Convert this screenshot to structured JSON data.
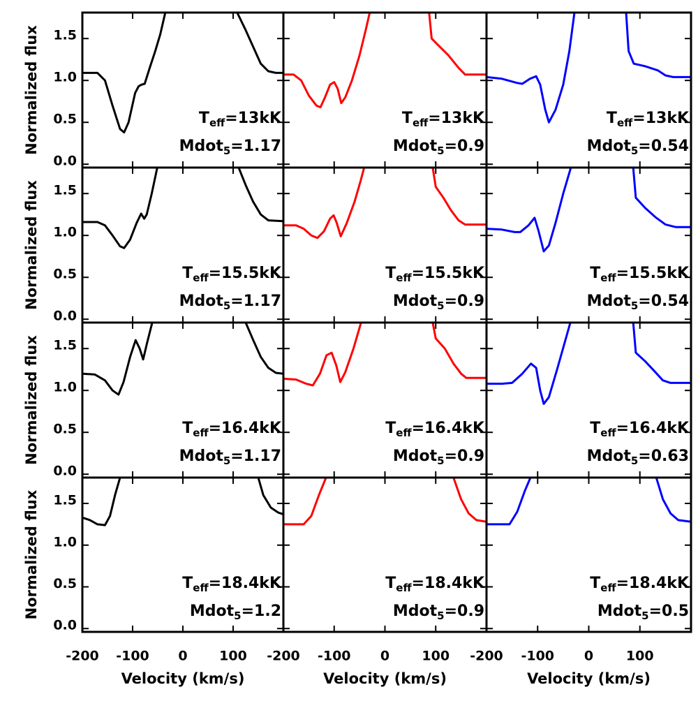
{
  "chart_data": [
    {
      "type": "line",
      "color": "#000000",
      "xlim": [
        -200,
        200
      ],
      "ylim": [
        -0.04,
        1.81
      ],
      "xticks": [
        -200,
        -100,
        0,
        100
      ],
      "yticks": [
        {
          "value": 0,
          "label": "0.0"
        },
        0.5,
        {
          "value": 1,
          "label": "1.0"
        },
        1.5
      ],
      "ytick_labels": true,
      "xtick_labels": false,
      "ylabel": "Normalized flux",
      "x": [
        -200,
        -170,
        -155,
        -140,
        -125,
        -117,
        -108,
        -95,
        -88,
        -82,
        -76,
        -66,
        -55,
        -45,
        -35,
        0,
        108,
        125,
        140,
        155,
        170,
        185,
        200
      ],
      "values": [
        1.09,
        1.09,
        1.0,
        0.7,
        0.42,
        0.38,
        0.5,
        0.85,
        0.93,
        0.95,
        0.96,
        1.15,
        1.35,
        1.55,
        1.81,
        null,
        1.81,
        1.6,
        1.4,
        1.2,
        1.11,
        1.09,
        1.09
      ],
      "annotations": [
        {
          "text": "T",
          "sub": "eff",
          "rest": "=13kK"
        },
        {
          "text": "Mdot",
          "sub": "5",
          "rest": "=1.17"
        }
      ]
    },
    {
      "type": "line",
      "color": "#ff0000",
      "xlim": [
        -200,
        200
      ],
      "ylim": [
        -0.04,
        1.81
      ],
      "xticks": [
        -200,
        -100,
        0,
        100
      ],
      "yticks": [
        0,
        0.5,
        1,
        1.5
      ],
      "ytick_labels": false,
      "xtick_labels": false,
      "x": [
        -200,
        -180,
        -165,
        -150,
        -135,
        -127,
        -118,
        -108,
        -100,
        -93,
        -86,
        -78,
        -65,
        -50,
        -38,
        -30,
        0,
        87,
        92,
        105,
        125,
        145,
        158,
        200
      ],
      "values": [
        1.07,
        1.07,
        1.0,
        0.82,
        0.7,
        0.68,
        0.8,
        0.95,
        0.98,
        0.9,
        0.73,
        0.8,
        1.0,
        1.3,
        1.6,
        1.81,
        null,
        1.81,
        1.5,
        1.42,
        1.3,
        1.15,
        1.07,
        1.07
      ],
      "annotations": [
        {
          "text": "T",
          "sub": "eff",
          "rest": "=13kK"
        },
        {
          "text": "Mdot",
          "sub": "5",
          "rest": "=0.9"
        }
      ]
    },
    {
      "type": "line",
      "color": "#0000ff",
      "xlim": [
        -200,
        200
      ],
      "ylim": [
        -0.04,
        1.81
      ],
      "xticks": [
        -200,
        -100,
        0,
        100
      ],
      "yticks": [
        0,
        0.5,
        1,
        1.5
      ],
      "ytick_labels": false,
      "xtick_labels": false,
      "x": [
        -200,
        -170,
        -140,
        -130,
        -115,
        -103,
        -95,
        -85,
        -78,
        -65,
        -50,
        -38,
        -28,
        0,
        73,
        78,
        88,
        110,
        135,
        150,
        165,
        200
      ],
      "values": [
        1.04,
        1.02,
        0.97,
        0.96,
        1.02,
        1.05,
        0.95,
        0.65,
        0.5,
        0.65,
        0.95,
        1.35,
        1.81,
        null,
        1.81,
        1.35,
        1.2,
        1.17,
        1.12,
        1.06,
        1.04,
        1.04
      ],
      "annotations": [
        {
          "text": "T",
          "sub": "eff",
          "rest": "=13kK"
        },
        {
          "text": "Mdot",
          "sub": "5",
          "rest": "=0.54"
        }
      ]
    },
    {
      "type": "line",
      "color": "#000000",
      "xlim": [
        -200,
        200
      ],
      "ylim": [
        -0.04,
        1.81
      ],
      "xticks": [
        -200,
        -100,
        0,
        100
      ],
      "yticks": [
        {
          "value": 0,
          "label": "0.0"
        },
        0.5,
        {
          "value": 1,
          "label": "1.0"
        },
        1.5
      ],
      "ytick_labels": true,
      "xtick_labels": false,
      "ylabel": "Normalized flux",
      "x": [
        -200,
        -170,
        -155,
        -140,
        -125,
        -117,
        -105,
        -92,
        -83,
        -77,
        -72,
        -62,
        -51,
        0,
        111,
        125,
        140,
        155,
        170,
        200
      ],
      "values": [
        1.16,
        1.16,
        1.12,
        1.0,
        0.87,
        0.85,
        0.95,
        1.15,
        1.26,
        1.2,
        1.25,
        1.5,
        1.81,
        null,
        1.81,
        1.6,
        1.4,
        1.25,
        1.18,
        1.17
      ],
      "annotations": [
        {
          "text": "T",
          "sub": "eff",
          "rest": "=15.5kK"
        },
        {
          "text": "Mdot",
          "sub": "5",
          "rest": "=1.17"
        }
      ]
    },
    {
      "type": "line",
      "color": "#ff0000",
      "xlim": [
        -200,
        200
      ],
      "ylim": [
        -0.04,
        1.81
      ],
      "xticks": [
        -200,
        -100,
        0,
        100
      ],
      "yticks": [
        0,
        0.5,
        1,
        1.5
      ],
      "ytick_labels": false,
      "xtick_labels": false,
      "x": [
        -200,
        -175,
        -160,
        -145,
        -133,
        -120,
        -108,
        -101,
        -95,
        -87,
        -75,
        -60,
        -48,
        -41,
        0,
        94,
        100,
        115,
        130,
        145,
        158,
        200
      ],
      "values": [
        1.12,
        1.12,
        1.08,
        1.0,
        0.97,
        1.05,
        1.2,
        1.24,
        1.15,
        0.99,
        1.15,
        1.4,
        1.65,
        1.81,
        null,
        1.81,
        1.58,
        1.45,
        1.3,
        1.18,
        1.13,
        1.13
      ],
      "annotations": [
        {
          "text": "T",
          "sub": "eff",
          "rest": "=15.5kK"
        },
        {
          "text": "Mdot",
          "sub": "5",
          "rest": "=0.9"
        }
      ]
    },
    {
      "type": "line",
      "color": "#0000ff",
      "xlim": [
        -200,
        200
      ],
      "ylim": [
        -0.04,
        1.81
      ],
      "xticks": [
        -200,
        -100,
        0,
        100
      ],
      "yticks": [
        0,
        0.5,
        1,
        1.5
      ],
      "ytick_labels": false,
      "xtick_labels": false,
      "x": [
        -200,
        -170,
        -145,
        -134,
        -118,
        -106,
        -98,
        -88,
        -78,
        -65,
        -50,
        -35,
        0,
        87,
        92,
        110,
        130,
        150,
        170,
        200
      ],
      "values": [
        1.08,
        1.07,
        1.04,
        1.04,
        1.12,
        1.21,
        1.05,
        0.81,
        0.88,
        1.15,
        1.5,
        1.81,
        null,
        1.81,
        1.45,
        1.33,
        1.22,
        1.13,
        1.1,
        1.1
      ],
      "annotations": [
        {
          "text": "T",
          "sub": "eff",
          "rest": "=15.5kK"
        },
        {
          "text": "Mdot",
          "sub": "5",
          "rest": "=0.54"
        }
      ]
    },
    {
      "type": "line",
      "color": "#000000",
      "xlim": [
        -200,
        200
      ],
      "ylim": [
        -0.04,
        1.81
      ],
      "xticks": [
        -200,
        -100,
        0,
        100
      ],
      "yticks": [
        {
          "value": 0,
          "label": "0.0"
        },
        0.5,
        {
          "value": 1,
          "label": "1.0"
        },
        1.5
      ],
      "ytick_labels": true,
      "xtick_labels": false,
      "ylabel": "Normalized flux",
      "x": [
        -200,
        -175,
        -155,
        -140,
        -128,
        -118,
        -105,
        -94,
        -86,
        -79,
        -72,
        -61,
        0,
        125,
        140,
        155,
        170,
        185,
        200
      ],
      "values": [
        1.2,
        1.19,
        1.12,
        1.0,
        0.95,
        1.1,
        1.4,
        1.6,
        1.5,
        1.37,
        1.55,
        1.81,
        null,
        1.81,
        1.6,
        1.4,
        1.27,
        1.21,
        1.2
      ],
      "annotations": [
        {
          "text": "T",
          "sub": "eff",
          "rest": "=16.4kK"
        },
        {
          "text": "Mdot",
          "sub": "5",
          "rest": "=1.17"
        }
      ]
    },
    {
      "type": "line",
      "color": "#ff0000",
      "xlim": [
        -200,
        200
      ],
      "ylim": [
        -0.04,
        1.81
      ],
      "xticks": [
        -200,
        -100,
        0,
        100
      ],
      "yticks": [
        0,
        0.5,
        1,
        1.5
      ],
      "ytick_labels": false,
      "xtick_labels": false,
      "x": [
        -200,
        -175,
        -155,
        -142,
        -128,
        -115,
        -105,
        -96,
        -88,
        -78,
        -62,
        -47,
        0,
        94,
        100,
        118,
        135,
        150,
        160,
        200
      ],
      "values": [
        1.14,
        1.13,
        1.08,
        1.06,
        1.2,
        1.42,
        1.45,
        1.3,
        1.1,
        1.22,
        1.5,
        1.81,
        null,
        1.81,
        1.62,
        1.5,
        1.32,
        1.2,
        1.15,
        1.15
      ],
      "annotations": [
        {
          "text": "T",
          "sub": "eff",
          "rest": "=16.4kK"
        },
        {
          "text": "Mdot",
          "sub": "5",
          "rest": "=0.9"
        }
      ]
    },
    {
      "type": "line",
      "color": "#0000ff",
      "xlim": [
        -200,
        200
      ],
      "ylim": [
        -0.04,
        1.81
      ],
      "xticks": [
        -200,
        -100,
        0,
        100
      ],
      "yticks": [
        0,
        0.5,
        1,
        1.5
      ],
      "ytick_labels": false,
      "xtick_labels": false,
      "x": [
        -200,
        -170,
        -150,
        -130,
        -113,
        -103,
        -95,
        -88,
        -78,
        -62,
        -48,
        -36,
        0,
        87,
        92,
        110,
        130,
        145,
        160,
        200
      ],
      "values": [
        1.08,
        1.08,
        1.09,
        1.2,
        1.32,
        1.27,
        1.0,
        0.84,
        0.92,
        1.25,
        1.55,
        1.81,
        null,
        1.81,
        1.45,
        1.35,
        1.22,
        1.12,
        1.09,
        1.09
      ],
      "annotations": [
        {
          "text": "T",
          "sub": "eff",
          "rest": "=16.4kK"
        },
        {
          "text": "Mdot",
          "sub": "5",
          "rest": "=0.63"
        }
      ]
    },
    {
      "type": "line",
      "color": "#000000",
      "xlim": [
        -200,
        200
      ],
      "ylim": [
        -0.04,
        1.81
      ],
      "xticks": [
        -200,
        -100,
        0,
        100
      ],
      "yticks": [
        {
          "value": 0,
          "label": "0.0"
        },
        0.5,
        {
          "value": 1,
          "label": "1.0"
        },
        1.5
      ],
      "ytick_labels": true,
      "xtick_labels": true,
      "ylabel": "Normalized flux",
      "xlabel": "Velocity (km/s)",
      "x": [
        -200,
        -185,
        -170,
        -155,
        -145,
        -135,
        -125,
        0,
        150,
        160,
        175,
        190,
        200
      ],
      "values": [
        1.33,
        1.3,
        1.25,
        1.24,
        1.35,
        1.6,
        1.81,
        null,
        1.81,
        1.6,
        1.45,
        1.39,
        1.37
      ],
      "annotations": [
        {
          "text": "T",
          "sub": "eff",
          "rest": "=18.4kK"
        },
        {
          "text": "Mdot",
          "sub": "5",
          "rest": "=1.2"
        }
      ]
    },
    {
      "type": "line",
      "color": "#ff0000",
      "xlim": [
        -200,
        200
      ],
      "ylim": [
        -0.04,
        1.81
      ],
      "xticks": [
        -200,
        -100,
        0,
        100
      ],
      "yticks": [
        0,
        0.5,
        1,
        1.5
      ],
      "ytick_labels": false,
      "xtick_labels": true,
      "xlabel": "Velocity (km/s)",
      "x": [
        -200,
        -160,
        -145,
        -130,
        -116,
        0,
        135,
        150,
        165,
        180,
        200
      ],
      "values": [
        1.25,
        1.25,
        1.35,
        1.6,
        1.81,
        null,
        1.81,
        1.55,
        1.38,
        1.3,
        1.28
      ],
      "annotations": [
        {
          "text": "T",
          "sub": "eff",
          "rest": "=18.4kK"
        },
        {
          "text": "Mdot",
          "sub": "5",
          "rest": "=0.9"
        }
      ]
    },
    {
      "type": "line",
      "color": "#0000ff",
      "xlim": [
        -200,
        200
      ],
      "ylim": [
        -0.04,
        1.81
      ],
      "xticks": [
        -200,
        -100,
        0,
        100
      ],
      "yticks": [
        0,
        0.5,
        1,
        1.5
      ],
      "ytick_labels": false,
      "xtick_labels": true,
      "xlabel": "Velocity (km/s)",
      "x": [
        -200,
        -155,
        -140,
        -125,
        -114,
        0,
        132,
        145,
        160,
        175,
        200
      ],
      "values": [
        1.25,
        1.25,
        1.4,
        1.65,
        1.81,
        null,
        1.81,
        1.55,
        1.38,
        1.3,
        1.28
      ],
      "annotations": [
        {
          "text": "T",
          "sub": "eff",
          "rest": "=18.4kK"
        },
        {
          "text": "Mdot",
          "sub": "5",
          "rest": "=0.5"
        }
      ]
    }
  ]
}
